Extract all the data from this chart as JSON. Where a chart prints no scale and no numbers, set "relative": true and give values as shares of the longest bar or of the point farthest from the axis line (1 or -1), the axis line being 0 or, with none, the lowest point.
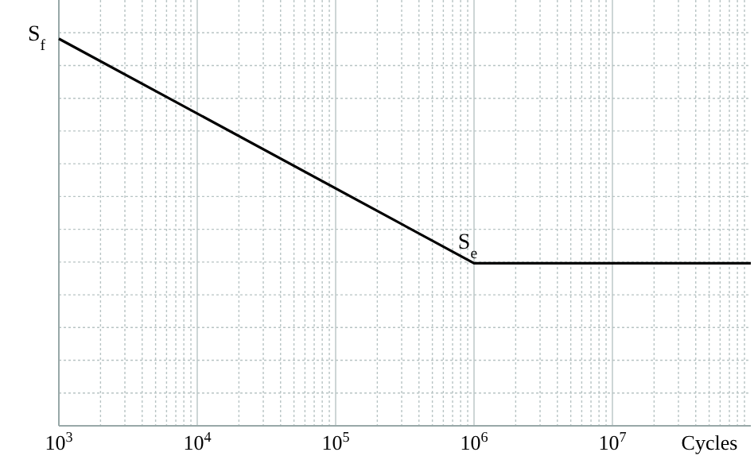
{
  "chart_data": {
    "type": "line",
    "relative": true,
    "log": "x",
    "grid": true,
    "marker": "none",
    "line_style": "solid",
    "xlabel": "Cycles",
    "xlim": [
      1000,
      100000000
    ],
    "xticks": [
      {
        "value": 1000,
        "label": "10$^{3}$"
      },
      {
        "value": 10000,
        "label": "10$^{4}$"
      },
      {
        "value": 100000,
        "label": "10$^{5}$"
      },
      {
        "value": 1000000,
        "label": "10$^{6}$"
      },
      {
        "value": 10000000,
        "label": "10$^{7}$"
      }
    ],
    "series": [
      {
        "color": "#000000",
        "x": [
          1000,
          1000000,
          100000000
        ],
        "values": [
          1,
          0.42,
          0.42
        ]
      }
    ],
    "annotations": [
      {
        "text": "S$_{f}$",
        "x": 1000,
        "y": 1
      },
      {
        "text": "S$_{e}$",
        "x": 1000000,
        "y": 0.42
      }
    ]
  }
}
